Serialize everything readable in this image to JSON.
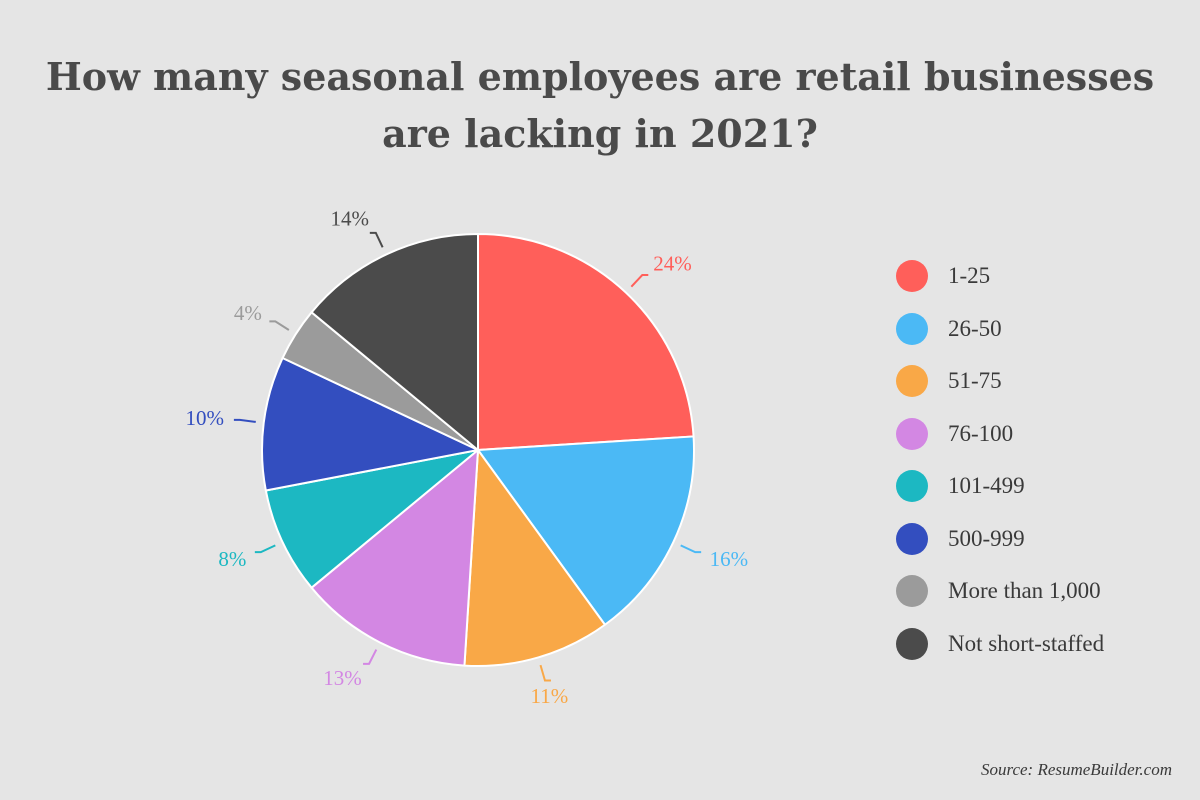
{
  "chart_data": {
    "type": "pie",
    "title": "How many seasonal employees are retail businesses are lacking in 2021?",
    "title_lines": [
      "How many seasonal employees are retail businesses",
      "are lacking in 2021?"
    ],
    "categories": [
      "1-25",
      "26-50",
      "51-75",
      "76-100",
      "101-499",
      "500-999",
      "More than 1,000",
      "Not short-staffed"
    ],
    "values": [
      24,
      16,
      11,
      13,
      8,
      10,
      4,
      14
    ],
    "value_labels": [
      "24%",
      "16%",
      "11%",
      "13%",
      "8%",
      "10%",
      "4%",
      "14%"
    ],
    "colors": [
      "#ff5f5a",
      "#4bb9f5",
      "#f9a847",
      "#d387e3",
      "#1cb8c2",
      "#334ebf",
      "#9b9b9b",
      "#4b4b4b"
    ],
    "legend_position": "right",
    "start_angle": "top, clockwise"
  },
  "source": "Source: ResumeBuilder.com"
}
